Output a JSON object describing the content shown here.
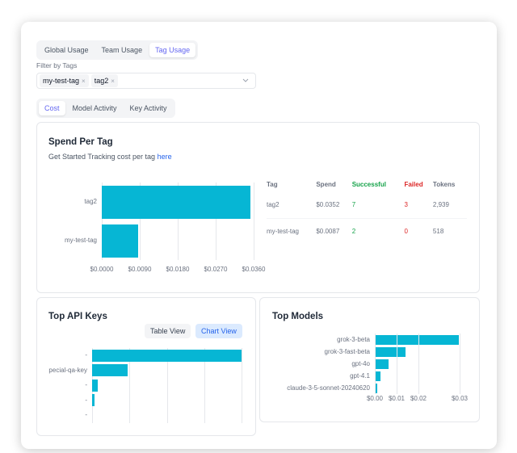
{
  "top_tabs": [
    {
      "label": "Global Usage"
    },
    {
      "label": "Team Usage"
    },
    {
      "label": "Tag Usage",
      "active": true
    }
  ],
  "filter": {
    "label": "Filter by Tags",
    "tags": [
      "my-test-tag",
      "tag2"
    ],
    "remove_icon": "×",
    "chevron_icon": "chevron-down"
  },
  "sub_tabs": [
    {
      "label": "Cost",
      "active": true
    },
    {
      "label": "Model Activity"
    },
    {
      "label": "Key Activity"
    }
  ],
  "spend_per_tag": {
    "title": "Spend Per Tag",
    "subtitle": "Get Started Tracking cost per tag ",
    "link": "here",
    "chart_data": {
      "type": "bar",
      "orientation": "horizontal",
      "categories": [
        "tag2",
        "my-test-tag"
      ],
      "values": [
        0.0352,
        0.0087
      ],
      "xlim": [
        0,
        0.036
      ],
      "xticks": [
        "$0.0000",
        "$0.0090",
        "$0.0180",
        "$0.0270",
        "$0.0360"
      ],
      "color": "#06b6d4"
    },
    "table": {
      "headers": [
        "Tag",
        "Spend",
        "Successful",
        "Failed",
        "Tokens"
      ],
      "rows": [
        [
          "tag2",
          "$0.0352",
          "7",
          "3",
          "2,939"
        ],
        [
          "my-test-tag",
          "$0.0087",
          "2",
          "0",
          "518"
        ]
      ],
      "success_color": "#16a34a",
      "failed_color": "#dc2626"
    }
  },
  "top_api_keys": {
    "title": "Top API Keys",
    "table_view": "Table View",
    "chart_view": "Chart View",
    "chart_data": {
      "type": "bar",
      "orientation": "horizontal",
      "categories": [
        "-",
        "pecial-qa-key",
        "-",
        "-",
        "-"
      ],
      "values": [
        1,
        0.24,
        0.04,
        0.015,
        0
      ],
      "color": "#06b6d4"
    }
  },
  "top_models": {
    "title": "Top Models",
    "chart_data": {
      "type": "bar",
      "orientation": "horizontal",
      "categories": [
        "grok-3-beta",
        "grok-3-fast-beta",
        "gpt-4o",
        "gpt-4.1",
        "claude-3-5-sonnet-20240620"
      ],
      "values": [
        0.029,
        0.0105,
        0.0048,
        0.002,
        0.0007
      ],
      "xticks": [
        "$0.00",
        "$0.01",
        "$0.02",
        "$0.03"
      ],
      "color": "#06b6d4"
    }
  }
}
